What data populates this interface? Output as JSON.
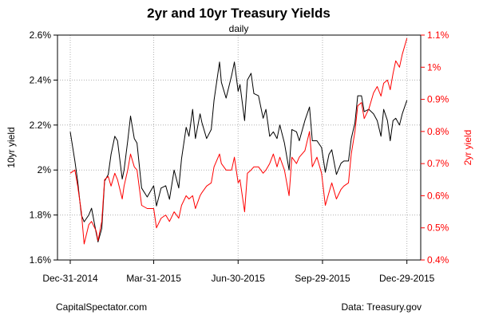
{
  "chart_data": {
    "type": "line",
    "title": "2yr and 10yr Treasury Yields",
    "subtitle": "daily",
    "xlabel": "",
    "x_range": [
      "2014-12-31",
      "2015-12-31"
    ],
    "x_ticks": [
      "2014-12-31",
      "2015-03-31",
      "2015-06-30",
      "2015-09-29",
      "2015-12-29"
    ],
    "x_tick_labels": [
      "Dec-31-2014",
      "Mar-31-2015",
      "Jun-30-2015",
      "Sep-29-2015",
      "Dec-29-2015"
    ],
    "grid": true,
    "left_axis": {
      "label": "10yr yield",
      "range": [
        1.6,
        2.6
      ],
      "ticks": [
        1.6,
        1.8,
        2.0,
        2.2,
        2.4,
        2.6
      ],
      "tick_labels": [
        "1.6%",
        "1.8%",
        "2%",
        "2.2%",
        "2.4%",
        "2.6%"
      ],
      "color": "#000000"
    },
    "right_axis": {
      "label": "2yr yield",
      "range": [
        0.4,
        1.1
      ],
      "ticks": [
        0.4,
        0.5,
        0.6,
        0.7,
        0.8,
        0.9,
        1.0,
        1.1
      ],
      "tick_labels": [
        "0.4%",
        "0.5%",
        "0.6%",
        "0.7%",
        "0.8%",
        "0.9%",
        "1%",
        "1.1%"
      ],
      "color": "#ff0000"
    },
    "series": [
      {
        "axis": "left",
        "color": "#000000",
        "points": [
          [
            "2014-12-31",
            2.17
          ],
          [
            "2015-01-05",
            2.04
          ],
          [
            "2015-01-08",
            1.95
          ],
          [
            "2015-01-12",
            1.8
          ],
          [
            "2015-01-15",
            1.77
          ],
          [
            "2015-01-20",
            1.8
          ],
          [
            "2015-01-23",
            1.83
          ],
          [
            "2015-01-28",
            1.72
          ],
          [
            "2015-01-30",
            1.68
          ],
          [
            "2015-02-03",
            1.74
          ],
          [
            "2015-02-06",
            1.95
          ],
          [
            "2015-02-10",
            1.98
          ],
          [
            "2015-02-13",
            2.07
          ],
          [
            "2015-02-17",
            2.15
          ],
          [
            "2015-02-20",
            2.13
          ],
          [
            "2015-02-25",
            1.96
          ],
          [
            "2015-02-27",
            2.0
          ],
          [
            "2015-03-03",
            2.13
          ],
          [
            "2015-03-06",
            2.24
          ],
          [
            "2015-03-10",
            2.14
          ],
          [
            "2015-03-13",
            2.12
          ],
          [
            "2015-03-18",
            1.92
          ],
          [
            "2015-03-24",
            1.88
          ],
          [
            "2015-03-31",
            1.93
          ],
          [
            "2015-04-03",
            1.84
          ],
          [
            "2015-04-08",
            1.92
          ],
          [
            "2015-04-13",
            1.93
          ],
          [
            "2015-04-17",
            1.87
          ],
          [
            "2015-04-22",
            2.0
          ],
          [
            "2015-04-27",
            1.92
          ],
          [
            "2015-04-30",
            2.05
          ],
          [
            "2015-05-05",
            2.19
          ],
          [
            "2015-05-08",
            2.15
          ],
          [
            "2015-05-12",
            2.27
          ],
          [
            "2015-05-15",
            2.14
          ],
          [
            "2015-05-20",
            2.25
          ],
          [
            "2015-05-22",
            2.21
          ],
          [
            "2015-05-27",
            2.14
          ],
          [
            "2015-06-01",
            2.18
          ],
          [
            "2015-06-04",
            2.31
          ],
          [
            "2015-06-10",
            2.48
          ],
          [
            "2015-06-12",
            2.39
          ],
          [
            "2015-06-17",
            2.32
          ],
          [
            "2015-06-23",
            2.42
          ],
          [
            "2015-06-26",
            2.48
          ],
          [
            "2015-06-30",
            2.35
          ],
          [
            "2015-07-02",
            2.38
          ],
          [
            "2015-07-07",
            2.22
          ],
          [
            "2015-07-10",
            2.4
          ],
          [
            "2015-07-14",
            2.43
          ],
          [
            "2015-07-17",
            2.34
          ],
          [
            "2015-07-22",
            2.33
          ],
          [
            "2015-07-27",
            2.23
          ],
          [
            "2015-07-30",
            2.27
          ],
          [
            "2015-08-03",
            2.15
          ],
          [
            "2015-08-07",
            2.17
          ],
          [
            "2015-08-11",
            2.14
          ],
          [
            "2015-08-14",
            2.2
          ],
          [
            "2015-08-19",
            2.12
          ],
          [
            "2015-08-24",
            2.0
          ],
          [
            "2015-08-27",
            2.18
          ],
          [
            "2015-09-01",
            2.17
          ],
          [
            "2015-09-04",
            2.13
          ],
          [
            "2015-09-10",
            2.22
          ],
          [
            "2015-09-15",
            2.28
          ],
          [
            "2015-09-18",
            2.13
          ],
          [
            "2015-09-23",
            2.13
          ],
          [
            "2015-09-28",
            2.1
          ],
          [
            "2015-10-02",
            1.99
          ],
          [
            "2015-10-06",
            2.07
          ],
          [
            "2015-10-09",
            2.09
          ],
          [
            "2015-10-14",
            1.98
          ],
          [
            "2015-10-19",
            2.03
          ],
          [
            "2015-10-22",
            2.04
          ],
          [
            "2015-10-27",
            2.04
          ],
          [
            "2015-10-30",
            2.14
          ],
          [
            "2015-11-03",
            2.21
          ],
          [
            "2015-11-06",
            2.33
          ],
          [
            "2015-11-10",
            2.33
          ],
          [
            "2015-11-13",
            2.26
          ],
          [
            "2015-11-18",
            2.27
          ],
          [
            "2015-11-23",
            2.25
          ],
          [
            "2015-11-27",
            2.22
          ],
          [
            "2015-12-01",
            2.15
          ],
          [
            "2015-12-04",
            2.27
          ],
          [
            "2015-12-08",
            2.22
          ],
          [
            "2015-12-11",
            2.13
          ],
          [
            "2015-12-14",
            2.22
          ],
          [
            "2015-12-17",
            2.23
          ],
          [
            "2015-12-21",
            2.2
          ],
          [
            "2015-12-24",
            2.25
          ],
          [
            "2015-12-29",
            2.31
          ]
        ]
      },
      {
        "axis": "right",
        "color": "#ff0000",
        "points": [
          [
            "2014-12-31",
            0.67
          ],
          [
            "2015-01-05",
            0.68
          ],
          [
            "2015-01-08",
            0.63
          ],
          [
            "2015-01-12",
            0.55
          ],
          [
            "2015-01-15",
            0.45
          ],
          [
            "2015-01-20",
            0.51
          ],
          [
            "2015-01-23",
            0.52
          ],
          [
            "2015-01-28",
            0.49
          ],
          [
            "2015-01-30",
            0.46
          ],
          [
            "2015-02-03",
            0.52
          ],
          [
            "2015-02-06",
            0.65
          ],
          [
            "2015-02-10",
            0.66
          ],
          [
            "2015-02-13",
            0.63
          ],
          [
            "2015-02-17",
            0.67
          ],
          [
            "2015-02-20",
            0.65
          ],
          [
            "2015-02-25",
            0.59
          ],
          [
            "2015-02-27",
            0.63
          ],
          [
            "2015-03-03",
            0.68
          ],
          [
            "2015-03-06",
            0.73
          ],
          [
            "2015-03-10",
            0.69
          ],
          [
            "2015-03-13",
            0.68
          ],
          [
            "2015-03-18",
            0.57
          ],
          [
            "2015-03-24",
            0.56
          ],
          [
            "2015-03-31",
            0.56
          ],
          [
            "2015-04-03",
            0.5
          ],
          [
            "2015-04-08",
            0.53
          ],
          [
            "2015-04-13",
            0.54
          ],
          [
            "2015-04-17",
            0.52
          ],
          [
            "2015-04-22",
            0.55
          ],
          [
            "2015-04-27",
            0.53
          ],
          [
            "2015-04-30",
            0.57
          ],
          [
            "2015-05-05",
            0.6
          ],
          [
            "2015-05-08",
            0.59
          ],
          [
            "2015-05-12",
            0.6
          ],
          [
            "2015-05-15",
            0.56
          ],
          [
            "2015-05-20",
            0.6
          ],
          [
            "2015-05-22",
            0.61
          ],
          [
            "2015-05-27",
            0.63
          ],
          [
            "2015-06-01",
            0.64
          ],
          [
            "2015-06-04",
            0.69
          ],
          [
            "2015-06-10",
            0.73
          ],
          [
            "2015-06-12",
            0.7
          ],
          [
            "2015-06-17",
            0.68
          ],
          [
            "2015-06-23",
            0.68
          ],
          [
            "2015-06-26",
            0.72
          ],
          [
            "2015-06-30",
            0.64
          ],
          [
            "2015-07-02",
            0.65
          ],
          [
            "2015-07-07",
            0.55
          ],
          [
            "2015-07-10",
            0.67
          ],
          [
            "2015-07-14",
            0.68
          ],
          [
            "2015-07-17",
            0.69
          ],
          [
            "2015-07-22",
            0.69
          ],
          [
            "2015-07-27",
            0.67
          ],
          [
            "2015-07-30",
            0.68
          ],
          [
            "2015-08-03",
            0.7
          ],
          [
            "2015-08-07",
            0.73
          ],
          [
            "2015-08-11",
            0.69
          ],
          [
            "2015-08-14",
            0.72
          ],
          [
            "2015-08-19",
            0.68
          ],
          [
            "2015-08-24",
            0.6
          ],
          [
            "2015-08-27",
            0.72
          ],
          [
            "2015-09-01",
            0.7
          ],
          [
            "2015-09-04",
            0.72
          ],
          [
            "2015-09-10",
            0.74
          ],
          [
            "2015-09-15",
            0.8
          ],
          [
            "2015-09-18",
            0.69
          ],
          [
            "2015-09-23",
            0.72
          ],
          [
            "2015-09-28",
            0.67
          ],
          [
            "2015-10-02",
            0.57
          ],
          [
            "2015-10-06",
            0.61
          ],
          [
            "2015-10-09",
            0.64
          ],
          [
            "2015-10-14",
            0.59
          ],
          [
            "2015-10-19",
            0.62
          ],
          [
            "2015-10-22",
            0.63
          ],
          [
            "2015-10-27",
            0.64
          ],
          [
            "2015-10-30",
            0.73
          ],
          [
            "2015-11-03",
            0.8
          ],
          [
            "2015-11-06",
            0.88
          ],
          [
            "2015-11-10",
            0.89
          ],
          [
            "2015-11-13",
            0.84
          ],
          [
            "2015-11-18",
            0.87
          ],
          [
            "2015-11-23",
            0.92
          ],
          [
            "2015-11-27",
            0.94
          ],
          [
            "2015-12-01",
            0.91
          ],
          [
            "2015-12-04",
            0.95
          ],
          [
            "2015-12-08",
            0.96
          ],
          [
            "2015-12-11",
            0.93
          ],
          [
            "2015-12-14",
            0.98
          ],
          [
            "2015-12-17",
            1.02
          ],
          [
            "2015-12-21",
            1.0
          ],
          [
            "2015-12-24",
            1.04
          ],
          [
            "2015-12-29",
            1.09
          ]
        ]
      }
    ]
  },
  "footer": {
    "source_left": "CapitalSpectator.com",
    "source_right": "Data: Treasury.gov"
  }
}
